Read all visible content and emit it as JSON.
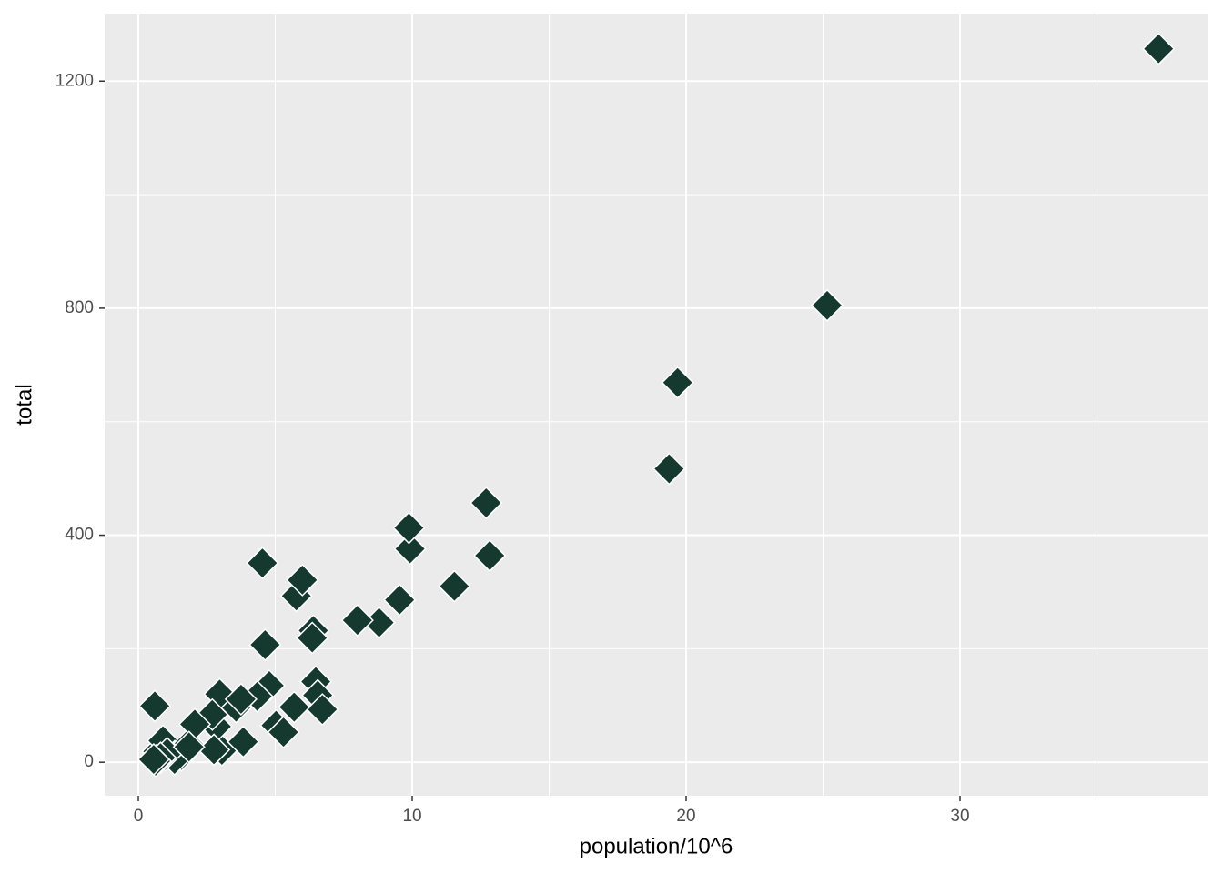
{
  "chart_data": {
    "type": "scatter",
    "x_label": "population/10^6",
    "y_label": "total",
    "x": [
      4.78,
      0.71,
      6.39,
      2.92,
      37.25,
      5.03,
      3.57,
      0.9,
      0.6,
      19.69,
      9.92,
      1.36,
      1.57,
      12.83,
      6.48,
      3.05,
      2.85,
      4.34,
      4.53,
      1.33,
      5.77,
      6.55,
      9.88,
      5.3,
      2.97,
      5.99,
      0.99,
      1.83,
      2.7,
      1.32,
      8.79,
      2.06,
      19.38,
      9.54,
      0.67,
      11.54,
      3.75,
      3.83,
      12.7,
      1.05,
      4.63,
      0.81,
      6.35,
      25.15,
      2.76,
      0.63,
      8.0,
      6.72,
      1.85,
      5.69,
      0.56
    ],
    "values": [
      135,
      19,
      232,
      93,
      1257,
      65,
      97,
      38,
      99,
      669,
      376,
      7,
      12,
      364,
      142,
      21,
      63,
      116,
      351,
      11,
      293,
      118,
      413,
      53,
      120,
      321,
      12,
      32,
      84,
      5,
      246,
      67,
      517,
      286,
      4,
      310,
      111,
      36,
      457,
      16,
      207,
      8,
      219,
      805,
      22,
      2,
      250,
      93,
      27,
      97,
      5
    ],
    "color": "#15382f",
    "xlim": [
      -1.23,
      39.07
    ],
    "ylim": [
      -59,
      1319
    ],
    "xticks": [
      0,
      10,
      20,
      30
    ],
    "yticks": [
      0,
      400,
      800,
      1200
    ],
    "xminor": [
      5,
      15,
      25,
      35
    ],
    "yminor": [
      200,
      600,
      1000
    ],
    "grid": true
  }
}
